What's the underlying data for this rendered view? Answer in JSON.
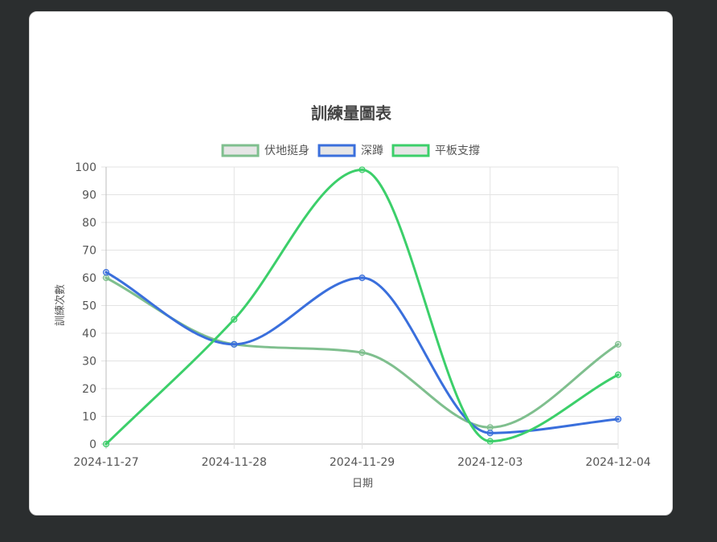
{
  "chart_data": {
    "type": "line",
    "title": "訓練量圖表",
    "xlabel": "日期",
    "ylabel": "訓練次數",
    "categories": [
      "2024-11-27",
      "2024-11-28",
      "2024-11-29",
      "2024-12-03",
      "2024-12-04"
    ],
    "ylim": [
      0,
      100
    ],
    "yticks": [
      0,
      10,
      20,
      30,
      40,
      50,
      60,
      70,
      80,
      90,
      100
    ],
    "grid": true,
    "legend_position": "top",
    "series": [
      {
        "name": "伏地挺身",
        "color": "#7fbf8e",
        "values": [
          60,
          36,
          33,
          6,
          36
        ]
      },
      {
        "name": "深蹲",
        "color": "#3a6fdc",
        "values": [
          62,
          36,
          60,
          4,
          9
        ]
      },
      {
        "name": "平板支撐",
        "color": "#3ccf6a",
        "values": [
          0,
          45,
          99,
          1,
          25
        ]
      }
    ]
  }
}
